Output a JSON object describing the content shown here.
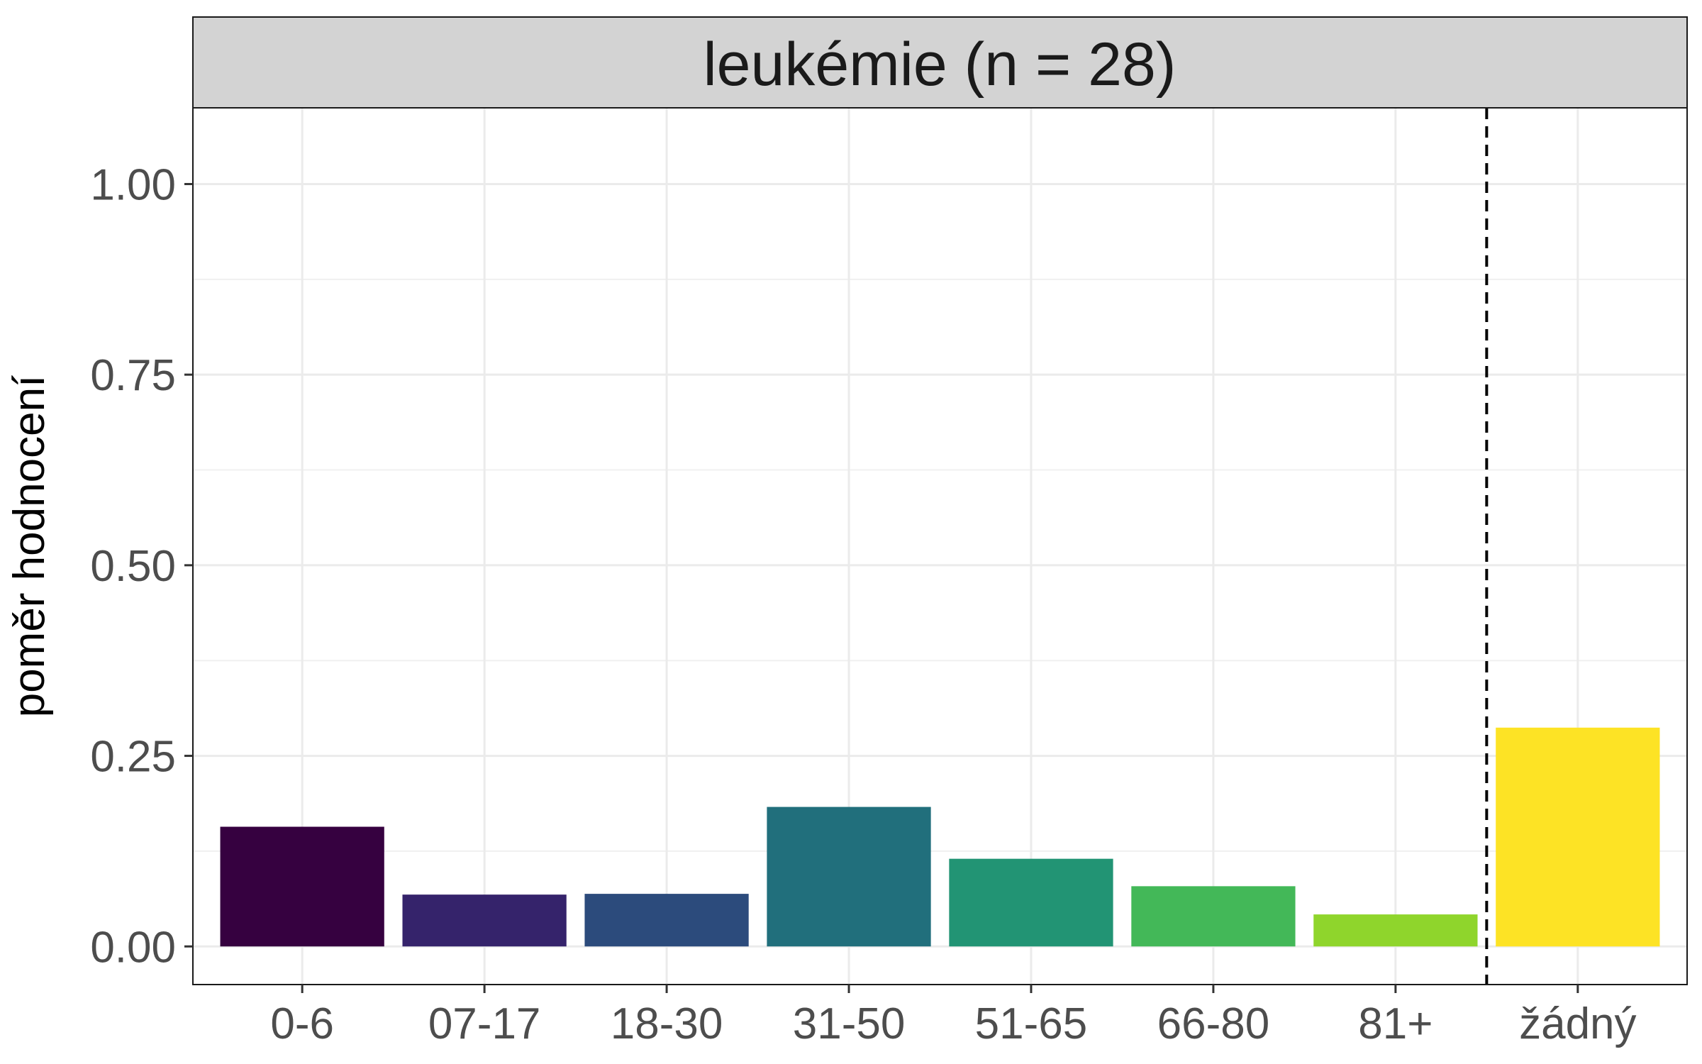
{
  "chart_data": {
    "type": "bar",
    "facet_title": "leukémie (n = 28)",
    "xlabel": "",
    "ylabel": "poměr hodnocení",
    "categories": [
      "0-6",
      "07-17",
      "18-30",
      "31-50",
      "51-65",
      "66-80",
      "81+",
      "žádný"
    ],
    "values": [
      0.157,
      0.068,
      0.069,
      0.183,
      0.115,
      0.079,
      0.042,
      0.287
    ],
    "colors": [
      "#360140",
      "#35236b",
      "#2c4b7c",
      "#216f7c",
      "#229474",
      "#43b858",
      "#8fd52c",
      "#fde325"
    ],
    "yticks": [
      "0.00",
      "0.25",
      "0.50",
      "0.75",
      "1.00"
    ],
    "ylim": [
      -0.05,
      1.1
    ],
    "separator_after_category": "81+",
    "grid": true
  }
}
